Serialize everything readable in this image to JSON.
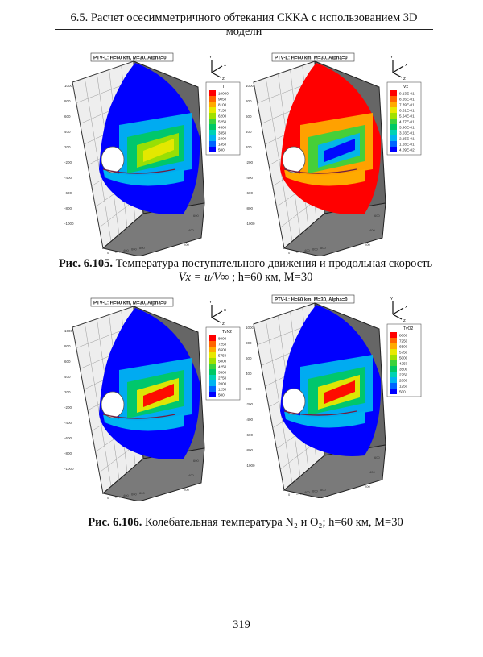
{
  "header": "6.5. Расчет осесимметричного обтекания СККА с использованием 3D модели",
  "figures": [
    {
      "panels": [
        {
          "title": "PTV-L: H=60 km, M=30, Alpha=0",
          "variable": "T",
          "theme": "blue",
          "levels": [
            "10000",
            "9050",
            "8100",
            "7150",
            "6200",
            "5250",
            "4300",
            "3350",
            "2400",
            "1450",
            "500"
          ]
        },
        {
          "title": "PTV-L: H=60 km, M=30, Alpha=0",
          "variable": "Vx",
          "theme": "red",
          "levels": [
            "9.13E-01",
            "8.26E-01",
            "7.39E-01",
            "6.51E-01",
            "5.64E-01",
            "4.77E-01",
            "3.90E-01",
            "3.03E-01",
            "2.15E-01",
            "1.28E-01",
            "4.09E-02"
          ]
        }
      ],
      "caption": {
        "label": "Рис. 6.105.",
        "text": "Температура поступательного движения и продольная скорость",
        "formula": "Vx = u/V∞",
        "rest": "; h=60 км, M=30"
      }
    },
    {
      "panels": [
        {
          "title": "PTV-L: H=60 km, M=30, Alpha=0",
          "variable": "TvN2",
          "theme": "blue2",
          "levels": [
            "8000",
            "7250",
            "6500",
            "5750",
            "5000",
            "4250",
            "3500",
            "2750",
            "2000",
            "1250",
            "500"
          ]
        },
        {
          "title": "PTV-L: H=60 km, M=30, Alpha=0",
          "variable": "TvO2",
          "theme": "blue2",
          "levels": [
            "8000",
            "7250",
            "6500",
            "5750",
            "5000",
            "4250",
            "3500",
            "2750",
            "2000",
            "1250",
            "500"
          ]
        }
      ],
      "caption": {
        "label": "Рис. 6.106.",
        "text": "Колебательная температура N₂ и O₂; h=60 км, M=30"
      }
    }
  ],
  "axes": {
    "vertical_ticks": [
      "1000",
      "800",
      "600",
      "400",
      "200",
      "-200",
      "-400",
      "-600",
      "-800",
      "-1000"
    ],
    "floor_ticks_a": [
      "0",
      "200",
      "400",
      "600",
      "800"
    ],
    "floor_ticks_b": [
      "200",
      "400",
      "600"
    ],
    "triad": [
      "Y",
      "X",
      "Z"
    ]
  },
  "colormap": [
    "#ff0000",
    "#ff6400",
    "#ffaa00",
    "#e8e800",
    "#a0e000",
    "#3cd23c",
    "#00c864",
    "#00d2b4",
    "#00b4f0",
    "#0064ff",
    "#0000ff"
  ],
  "page_number": "319"
}
